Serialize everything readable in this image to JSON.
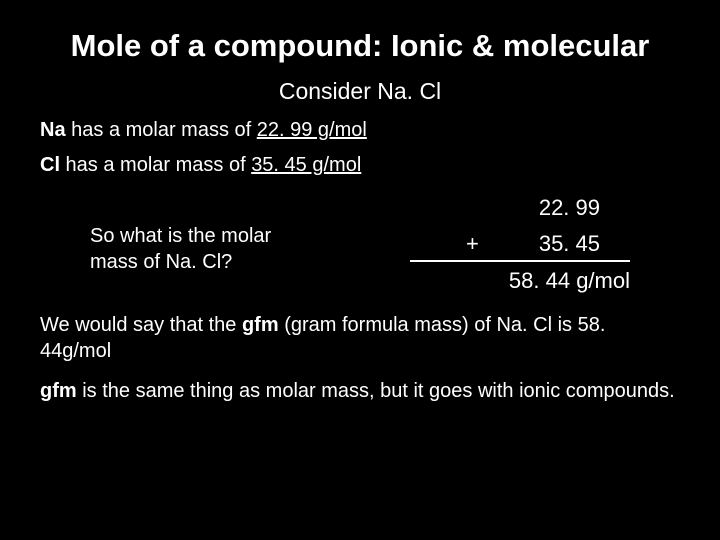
{
  "title": "Mole of a compound: Ionic & molecular",
  "subtitle": "Consider Na. Cl",
  "line1": {
    "element": "Na",
    "rest": " has a molar mass of ",
    "value": "22. 99 g/mol"
  },
  "line2": {
    "element": "Cl",
    "rest": " has a molar mass of ",
    "value": "35. 45 g/mol"
  },
  "question": {
    "l1": "So what is the molar",
    "l2": "mass of Na. Cl?"
  },
  "calc": {
    "v1": "22. 99",
    "plus": "+",
    "v2": "35. 45",
    "result": "58. 44 g/mol"
  },
  "footer1": {
    "a": "We would say that the ",
    "b": "gfm",
    "c": " (gram formula mass) of Na. Cl is 58. 44g/mol"
  },
  "footer2": {
    "a": "gfm",
    "b": " is the same thing as molar mass, but it goes with ionic compounds."
  },
  "colors": {
    "background": "#000000",
    "text": "#ffffff"
  },
  "fonts": {
    "family": "Comic Sans MS",
    "title_size": 31,
    "body_size": 20,
    "subtitle_size": 23,
    "calc_size": 22
  }
}
